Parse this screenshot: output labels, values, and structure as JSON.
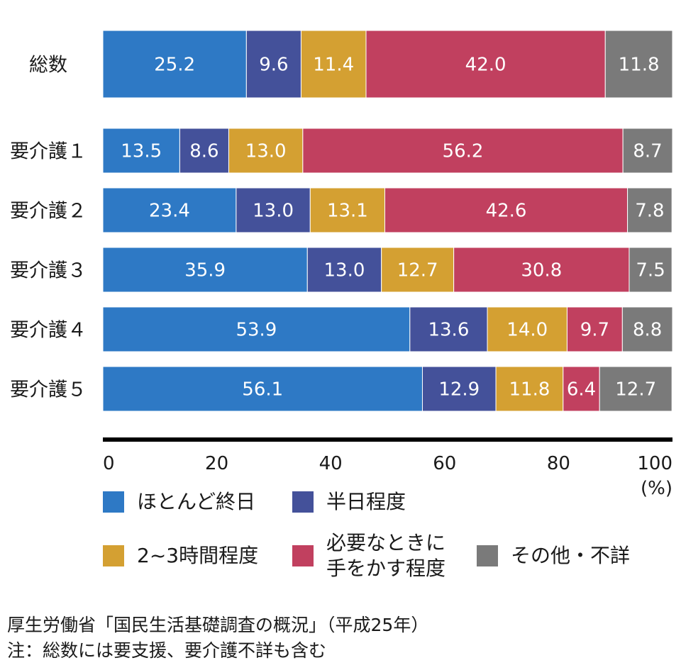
{
  "chart_data": {
    "type": "bar",
    "orientation": "horizontal",
    "stacked": true,
    "categories": [
      "総数",
      "要介護１",
      "要介護２",
      "要介護３",
      "要介護４",
      "要介護５"
    ],
    "series": [
      {
        "name": "ほとんど終日",
        "color": "#2e79c5",
        "values": [
          25.2,
          13.5,
          23.4,
          35.9,
          53.9,
          56.1
        ]
      },
      {
        "name": "半日程度",
        "color": "#44519a",
        "values": [
          9.6,
          8.6,
          13.0,
          13.0,
          13.6,
          12.9
        ]
      },
      {
        "name": "2~3時間程度",
        "color": "#d4a032",
        "values": [
          11.4,
          13.0,
          13.1,
          12.7,
          14.0,
          11.8
        ]
      },
      {
        "name": "必要なときに\n手をかす程度",
        "color": "#c1405f",
        "values": [
          42.0,
          56.2,
          42.6,
          30.8,
          9.7,
          6.4
        ]
      },
      {
        "name": "その他・不詳",
        "color": "#7a7a7a",
        "values": [
          11.8,
          8.7,
          7.8,
          7.5,
          8.8,
          12.7
        ]
      }
    ],
    "xlim": [
      0,
      100
    ],
    "xticks": [
      "0",
      "20",
      "40",
      "60",
      "80",
      "100"
    ],
    "xunit": "(%)",
    "grid": false,
    "legend_position": "bottom"
  },
  "notes": {
    "source": "厚生労働省「国民生活基礎調査の概況」（平成25年）",
    "note": "注：総数には要支援、要介護不詳も含む"
  }
}
